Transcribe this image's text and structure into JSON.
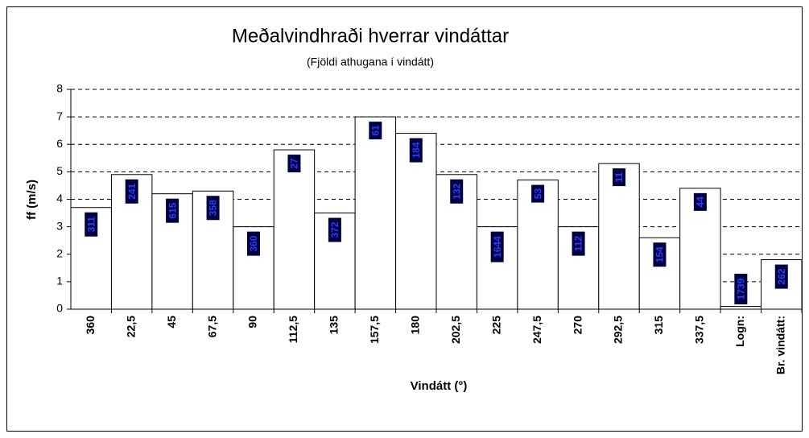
{
  "chart_data": {
    "type": "bar",
    "title": "Meðalvindhraði hverrar vindáttar",
    "subtitle": "(Fjöldi athugana í vindátt)",
    "x_label": "Vindátt (°)",
    "y_label": "ff (m/s)",
    "categories": [
      "360",
      "22,5",
      "45",
      "67,5",
      "90",
      "112,5",
      "135",
      "157,5",
      "180",
      "202,5",
      "225",
      "247,5",
      "270",
      "292,5",
      "315",
      "337,5",
      "Logn:",
      "Br. vindátt:"
    ],
    "values": [
      3.7,
      4.9,
      4.2,
      4.3,
      3.0,
      5.8,
      3.5,
      7.0,
      6.4,
      4.9,
      3.0,
      4.7,
      3.0,
      5.3,
      2.6,
      4.4,
      0.1,
      1.8
    ],
    "data_labels": [
      "311",
      "241",
      "615",
      "358",
      "360",
      "27",
      "372",
      "61",
      "184",
      "132",
      "1644",
      "53",
      "112",
      "11",
      "154",
      "44",
      "1739",
      "262"
    ],
    "color": "#ffffff",
    "ylim": [
      0,
      8
    ],
    "yticks": [
      0,
      1,
      2,
      3,
      4,
      5,
      6,
      7,
      8
    ],
    "grid": true
  }
}
